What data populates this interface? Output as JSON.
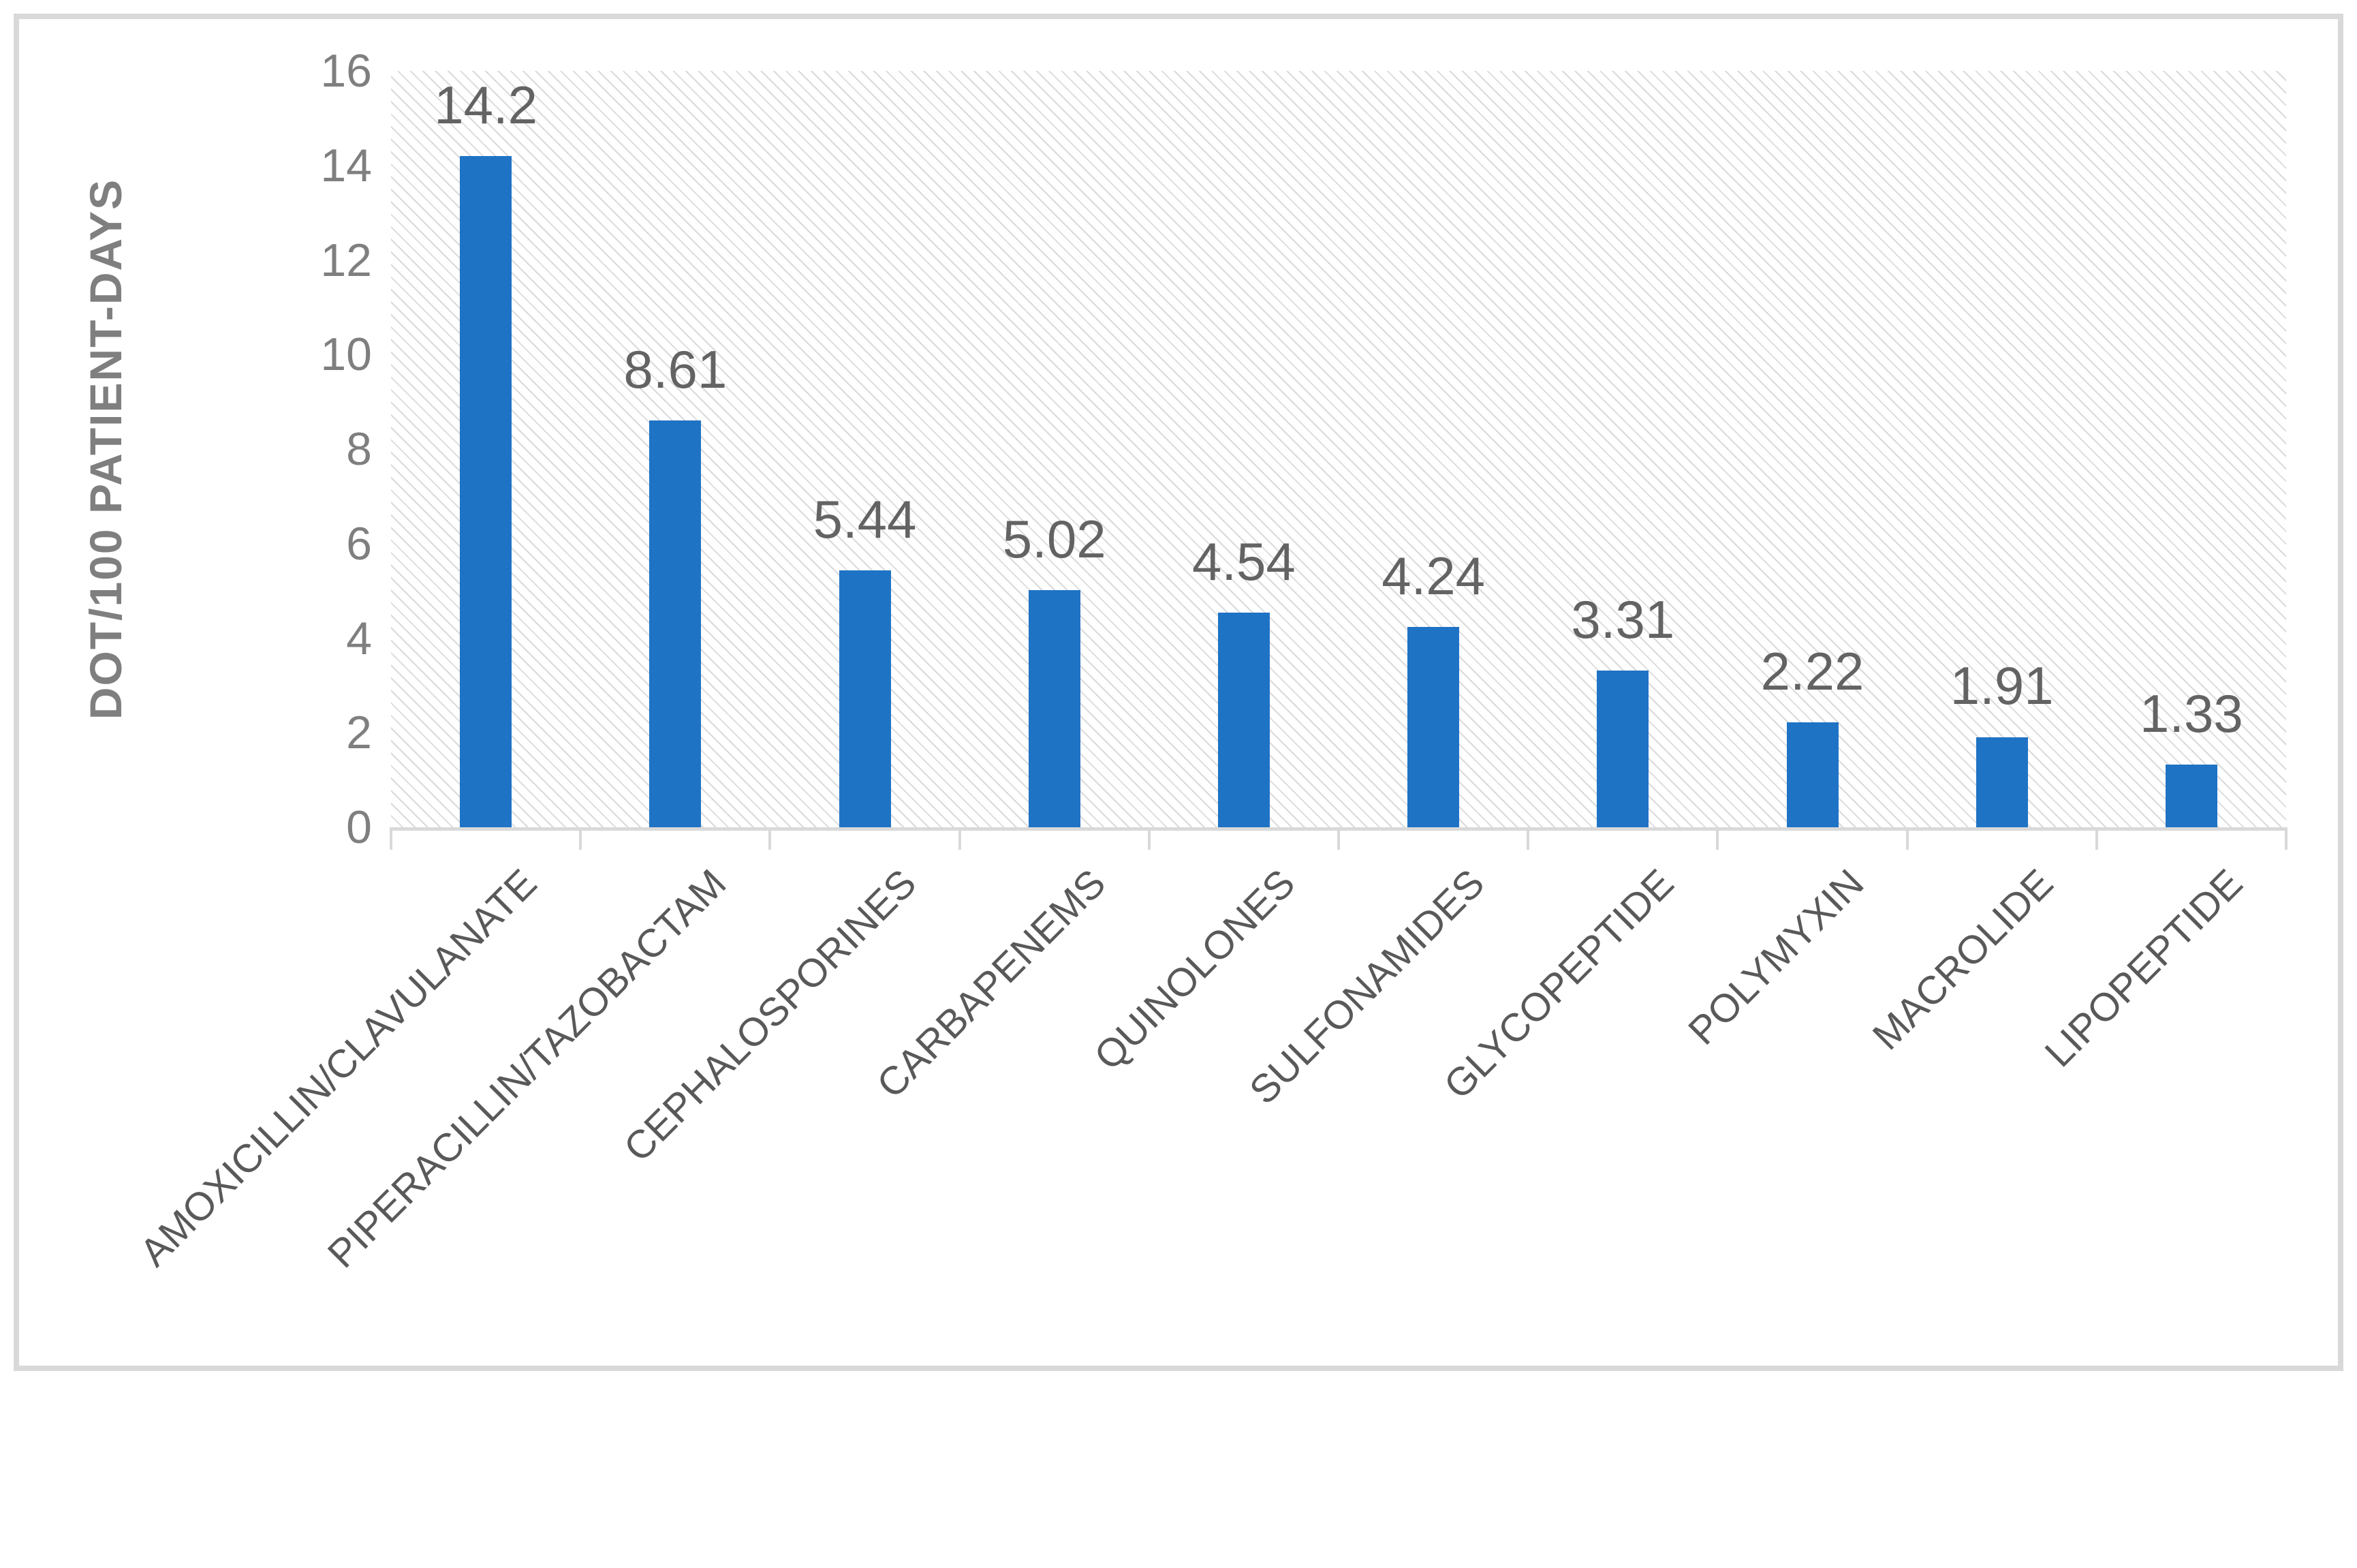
{
  "chart_data": {
    "type": "bar",
    "title": "",
    "categories": [
      "AMOXICILLIN/CLAVULANATE",
      "PIPERACILLIN/TAZOBACTAM",
      "CEPHALOSPORINES",
      "CARBAPENEMS",
      "QUINOLONES",
      "SULFONAMIDES",
      "GLYCOPEPTIDE",
      "POLYMYXIN",
      "MACROLIDE",
      "LIPOPEPTIDE"
    ],
    "values": [
      14.2,
      8.61,
      5.44,
      5.02,
      4.54,
      4.24,
      3.31,
      2.22,
      1.91,
      1.33
    ],
    "value_labels": [
      "14.2",
      "8.61",
      "5.44",
      "5.02",
      "4.54",
      "4.24",
      "3.31",
      "2.22",
      "1.91",
      "1.33"
    ],
    "xlabel": "",
    "ylabel": "DOT/100 PATIENT-DAYS",
    "ylim": [
      0,
      16
    ],
    "ytick_step": 2,
    "ytick_labels": [
      "0",
      "2",
      "4",
      "6",
      "8",
      "10",
      "12",
      "14",
      "16"
    ],
    "grid": false,
    "legend_position": "none",
    "plot_background": "light-diagonal-hatch",
    "bar_orientation": "vertical",
    "category_label_rotation_deg": -45,
    "colors": {
      "bar": "#1F73C5",
      "hatch_line": "#DADADA",
      "axis_line": "#D9D9D9",
      "frame_border": "#D9D9D9",
      "value_label_text": "#636363",
      "category_label_text": "#595959",
      "ytick_text": "#7F7F7F",
      "ytitle_text": "#7F7F7F",
      "background": "#FFFFFF"
    }
  }
}
